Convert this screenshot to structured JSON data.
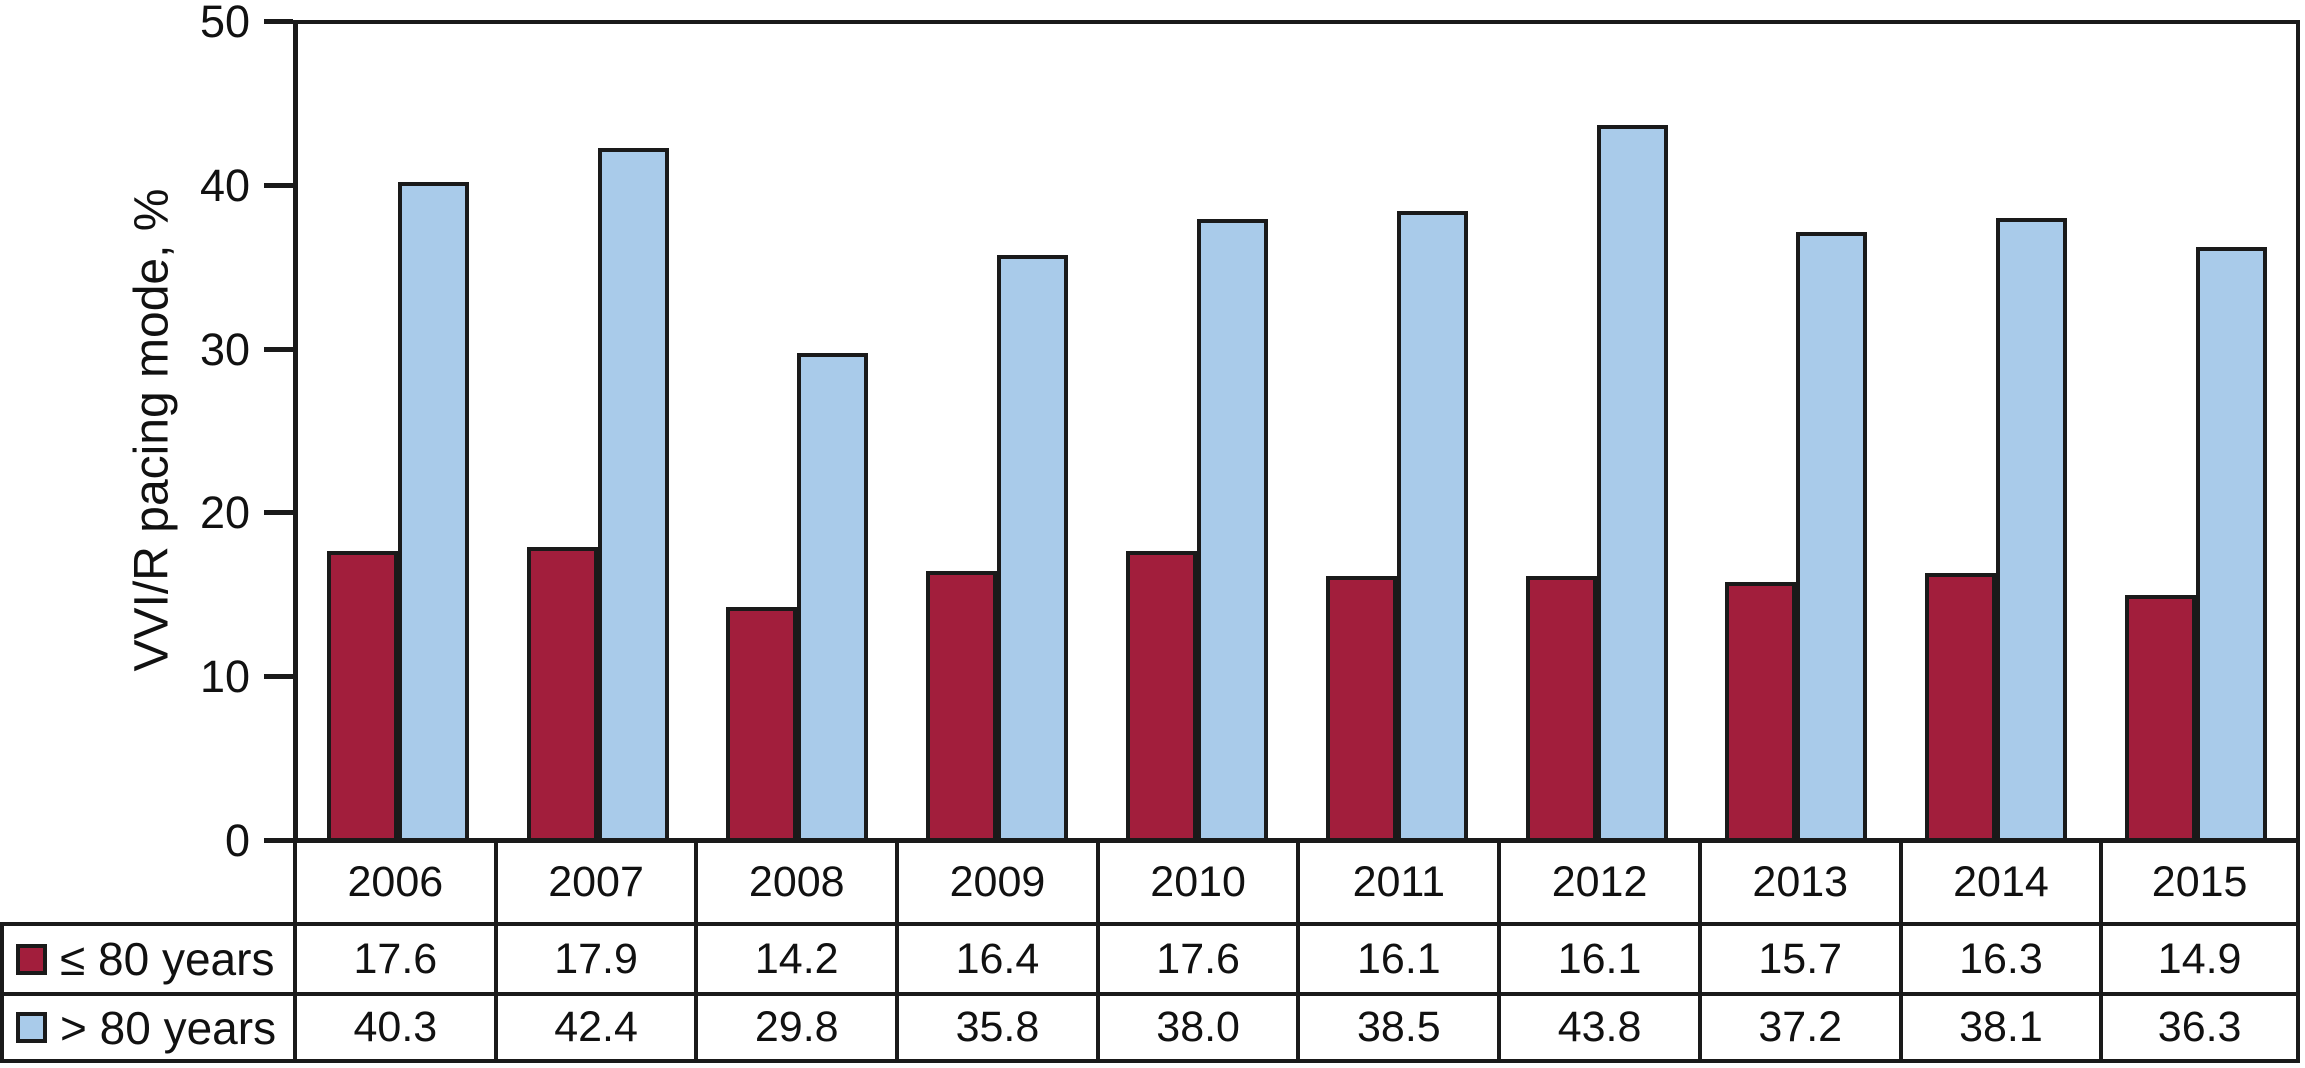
{
  "chart_data": {
    "type": "bar",
    "title": "",
    "ylabel": "VVI/R pacing mode, %",
    "xlabel": "",
    "ylim": [
      0,
      50
    ],
    "yticks": [
      0,
      10,
      20,
      30,
      40,
      50
    ],
    "grid": false,
    "legend_position": "table-rows-left",
    "categories": [
      "2006",
      "2007",
      "2008",
      "2009",
      "2010",
      "2011",
      "2012",
      "2013",
      "2014",
      "2015"
    ],
    "series": [
      {
        "name": "≤ 80 years",
        "slug": "le-80-years",
        "color": "#A21E3C",
        "values": [
          17.6,
          17.9,
          14.2,
          16.4,
          17.6,
          16.1,
          16.1,
          15.7,
          16.3,
          14.9
        ],
        "display": [
          "17.6",
          "17.9",
          "14.2",
          "16.4",
          "17.6",
          "16.1",
          "16.1",
          "15.7",
          "16.3",
          "14.9"
        ]
      },
      {
        "name": "> 80 years",
        "slug": "gt-80-years",
        "color": "#A9CBEA",
        "values": [
          40.3,
          42.4,
          29.8,
          35.8,
          38.0,
          38.5,
          43.8,
          37.2,
          38.1,
          36.3
        ],
        "display": [
          "40.3",
          "42.4",
          "29.8",
          "35.8",
          "38.0",
          "38.5",
          "43.8",
          "37.2",
          "38.1",
          "36.3"
        ]
      }
    ],
    "colors": {
      "axis": "#1a1a1a",
      "bar_outline": "#1a1a1a",
      "text": "#111111",
      "background": "#ffffff"
    }
  }
}
